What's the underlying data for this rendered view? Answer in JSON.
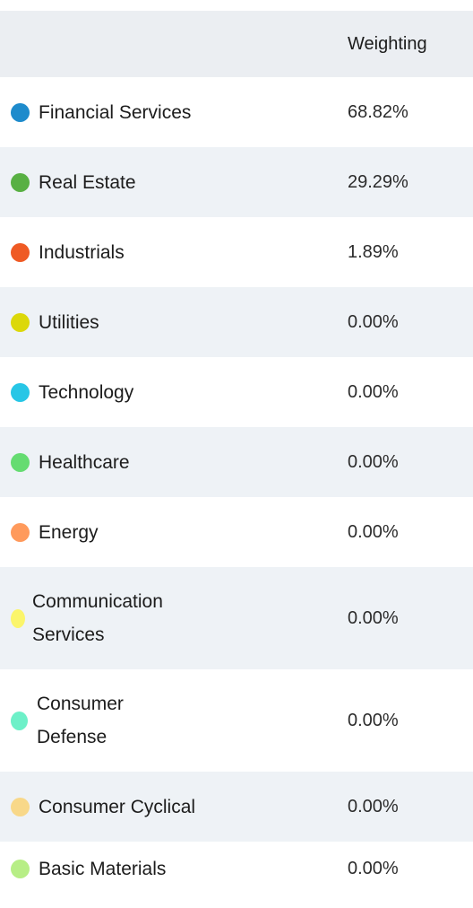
{
  "table": {
    "header": {
      "weighting_label": "Weighting"
    },
    "rows": [
      {
        "sector": "Financial Services",
        "weighting": "68.82%",
        "color": "#1e8bcc"
      },
      {
        "sector": "Real Estate",
        "weighting": "29.29%",
        "color": "#58b043"
      },
      {
        "sector": "Industrials",
        "weighting": "1.89%",
        "color": "#ef5a24"
      },
      {
        "sector": "Utilities",
        "weighting": "0.00%",
        "color": "#dcd80a"
      },
      {
        "sector": "Technology",
        "weighting": "0.00%",
        "color": "#27c6e6"
      },
      {
        "sector": "Healthcare",
        "weighting": "0.00%",
        "color": "#65dc71"
      },
      {
        "sector": "Energy",
        "weighting": "0.00%",
        "color": "#ff9a5c"
      },
      {
        "sector": "Communication Services",
        "weighting": "0.00%",
        "color": "#fbf56b"
      },
      {
        "sector": "Consumer Defense",
        "weighting": "0.00%",
        "color": "#6df0c8"
      },
      {
        "sector": "Consumer Cyclical",
        "weighting": "0.00%",
        "color": "#f8d889"
      },
      {
        "sector": "Basic Materials",
        "weighting": "0.00%",
        "color": "#b7ee86"
      }
    ]
  }
}
